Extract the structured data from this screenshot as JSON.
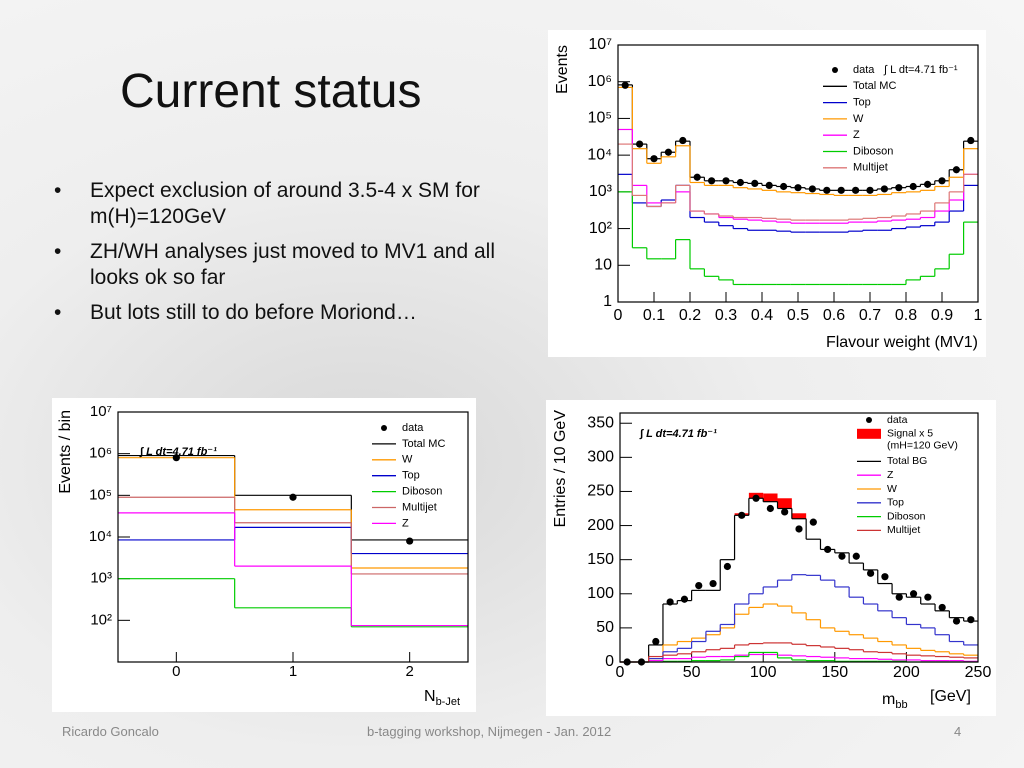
{
  "slide": {
    "title": "Current status",
    "bullets": [
      "Expect exclusion of around 3.5-4 x SM for m(H)=120GeV",
      "ZH/WH analyses just  moved to MV1 and all looks ok so far",
      "But lots still to do before Moriond…"
    ],
    "footer": {
      "author": "Ricardo Goncalo",
      "event": "b-tagging workshop, Nijmegen - Jan. 2012",
      "page": "4"
    }
  },
  "chart_data": [
    {
      "type": "histogram",
      "xlabel": "Flavour weight (MV1)",
      "ylabel": "Events",
      "annotation": "∫ L dt=4.71 fb⁻¹",
      "log_y": true,
      "bins": [
        0,
        0.04,
        0.08,
        0.12,
        0.16,
        0.2,
        0.24,
        0.28,
        0.32,
        0.36,
        0.4,
        0.44,
        0.48,
        0.52,
        0.56,
        0.6,
        0.64,
        0.68,
        0.72,
        0.76,
        0.8,
        0.84,
        0.88,
        0.92,
        0.96,
        1
      ],
      "xlim": [
        0,
        1
      ],
      "xticks": [
        0,
        0.1,
        0.2,
        0.3,
        0.4,
        0.5,
        0.6,
        0.7,
        0.8,
        0.9,
        1
      ],
      "ylim": [
        1,
        10000000
      ],
      "yticks": [
        1,
        10,
        {
          "value": 100,
          "label": "10²"
        },
        {
          "value": 1000,
          "label": "10³"
        },
        {
          "value": 10000,
          "label": "10⁴"
        },
        {
          "value": 100000,
          "label": "10⁵"
        },
        {
          "value": 1000000,
          "label": "10⁶"
        },
        {
          "value": 10000000,
          "label": "10⁷"
        }
      ],
      "series": [
        {
          "name": "data",
          "color": "#000000",
          "draw": "points",
          "values": [
            800000,
            20000,
            8000,
            12000,
            25000,
            2500,
            2000,
            2000,
            1800,
            1700,
            1500,
            1400,
            1300,
            1200,
            1100,
            1100,
            1100,
            1100,
            1200,
            1300,
            1400,
            1600,
            2000,
            4000,
            25000
          ]
        },
        {
          "name": "Total MC",
          "color": "#000000",
          "draw": "step",
          "values": [
            820000,
            20000,
            8000,
            12000,
            24000,
            2500,
            2000,
            2000,
            1800,
            1700,
            1500,
            1400,
            1300,
            1200,
            1100,
            1100,
            1100,
            1100,
            1200,
            1300,
            1400,
            1600,
            2000,
            4000,
            24000
          ]
        },
        {
          "name": "Top",
          "color": "#0000cc",
          "draw": "step",
          "values": [
            3000,
            500,
            400,
            600,
            1500,
            200,
            150,
            120,
            100,
            90,
            90,
            85,
            80,
            80,
            80,
            80,
            85,
            90,
            90,
            100,
            110,
            120,
            150,
            300,
            1500
          ]
        },
        {
          "name": "W",
          "color": "#ff9900",
          "draw": "step",
          "values": [
            700000,
            15000,
            6000,
            9000,
            18000,
            1800,
            1500,
            1500,
            1300,
            1200,
            1100,
            1000,
            950,
            900,
            850,
            800,
            800,
            800,
            850,
            950,
            1000,
            1100,
            1400,
            2500,
            15000
          ]
        },
        {
          "name": "Z",
          "color": "#ff00ff",
          "draw": "step",
          "values": [
            50000,
            1500,
            500,
            500,
            1000,
            300,
            250,
            200,
            180,
            170,
            160,
            150,
            140,
            140,
            140,
            140,
            150,
            150,
            160,
            170,
            180,
            200,
            300,
            600,
            3000
          ]
        },
        {
          "name": "Diboson",
          "color": "#00cc00",
          "draw": "step",
          "values": [
            1000,
            30,
            15,
            15,
            50,
            8,
            5,
            4,
            3,
            3,
            3,
            3,
            3,
            3,
            3,
            3,
            3,
            3,
            3,
            3,
            4,
            5,
            8,
            20,
            150
          ]
        },
        {
          "name": "Multijet",
          "color": "#dd7777",
          "draw": "step",
          "values": [
            20000,
            800,
            400,
            500,
            1500,
            300,
            250,
            220,
            200,
            200,
            190,
            180,
            170,
            170,
            170,
            170,
            180,
            190,
            200,
            220,
            250,
            300,
            500,
            1000,
            3000
          ]
        }
      ]
    },
    {
      "type": "histogram",
      "xlabel": "N",
      "xlabel_sub": "b-Jet",
      "ylabel": "Events / bin",
      "annotation": "∫ L dt=4.71 fb⁻¹",
      "log_y": true,
      "bins": [
        -0.5,
        0.5,
        1.5,
        2.5
      ],
      "xlim": [
        -0.5,
        2.5
      ],
      "xticks": [
        0,
        1,
        2
      ],
      "ylim": [
        10,
        10000000
      ],
      "yticks": [
        {
          "value": 100,
          "label": "10²"
        },
        {
          "value": 1000,
          "label": "10³"
        },
        {
          "value": 10000,
          "label": "10⁴"
        },
        {
          "value": 100000,
          "label": "10⁵"
        },
        {
          "value": 1000000,
          "label": "10⁶"
        },
        {
          "value": 10000000,
          "label": "10⁷"
        }
      ],
      "series": [
        {
          "name": "data",
          "color": "#000000",
          "draw": "points",
          "values": [
            800000,
            90000,
            8000
          ]
        },
        {
          "name": "Total MC",
          "color": "#000000",
          "draw": "step",
          "values": [
            900000,
            100000,
            8500
          ]
        },
        {
          "name": "W",
          "color": "#ff9900",
          "draw": "step",
          "values": [
            800000,
            45000,
            1800
          ]
        },
        {
          "name": "Top",
          "color": "#0000cc",
          "draw": "step",
          "values": [
            8500,
            17000,
            4000
          ]
        },
        {
          "name": "Diboson",
          "color": "#00cc00",
          "draw": "step",
          "values": [
            1000,
            200,
            70
          ]
        },
        {
          "name": "Multijet",
          "color": "#cc6666",
          "draw": "step",
          "values": [
            90000,
            22000,
            1300
          ]
        },
        {
          "name": "Z",
          "color": "#ff00ff",
          "draw": "step",
          "values": [
            38000,
            2000,
            75
          ]
        }
      ]
    },
    {
      "type": "histogram",
      "xlabel": "m",
      "xlabel_sub": "bb",
      "xlabel_unit": "[GeV]",
      "ylabel": "Entries / 10 GeV",
      "annotation": "∫ L dt=4.71 fb⁻¹",
      "legend_note": "(mH=120 GeV)",
      "log_y": false,
      "bins": [
        0,
        10,
        20,
        30,
        40,
        50,
        60,
        70,
        80,
        90,
        100,
        110,
        120,
        130,
        140,
        150,
        160,
        170,
        180,
        190,
        200,
        210,
        220,
        230,
        240,
        250
      ],
      "xlim": [
        0,
        250
      ],
      "xticks": [
        0,
        50,
        100,
        150,
        200,
        250
      ],
      "ylim": [
        0,
        365
      ],
      "yticks": [
        0,
        50,
        100,
        150,
        200,
        250,
        300,
        350
      ],
      "series": [
        {
          "name": "data",
          "color": "#000000",
          "draw": "points",
          "values": [
            0,
            0,
            30,
            88,
            92,
            112,
            115,
            140,
            215,
            240,
            225,
            220,
            195,
            205,
            165,
            155,
            155,
            130,
            125,
            95,
            100,
            95,
            80,
            60,
            62
          ]
        },
        {
          "name": "Signal x 5",
          "color": "#ff0000",
          "draw": "fill",
          "stacked_on": "Total BG",
          "values": [
            0,
            0,
            0,
            0,
            0,
            0,
            0,
            0,
            3,
            8,
            12,
            15,
            8,
            0,
            0,
            0,
            0,
            0,
            0,
            0,
            0,
            0,
            0,
            0,
            0
          ]
        },
        {
          "name": "Total BG",
          "color": "#000000",
          "draw": "step",
          "values": [
            0,
            0,
            25,
            85,
            90,
            105,
            105,
            150,
            215,
            240,
            235,
            225,
            210,
            180,
            165,
            160,
            145,
            135,
            115,
            100,
            95,
            85,
            75,
            65,
            60
          ]
        },
        {
          "name": "Z",
          "color": "#ff00ff",
          "draw": "step",
          "values": [
            0,
            0,
            2,
            5,
            5,
            7,
            8,
            8,
            10,
            11,
            11,
            10,
            9,
            8,
            7,
            6,
            5,
            5,
            4,
            3,
            3,
            2,
            2,
            2,
            1
          ]
        },
        {
          "name": "W",
          "color": "#ff9900",
          "draw": "step",
          "values": [
            0,
            0,
            5,
            25,
            30,
            35,
            40,
            50,
            70,
            80,
            85,
            82,
            72,
            62,
            50,
            45,
            40,
            35,
            30,
            25,
            20,
            17,
            15,
            12,
            10
          ]
        },
        {
          "name": "Top",
          "color": "#3333cc",
          "draw": "step",
          "values": [
            0,
            0,
            5,
            15,
            20,
            30,
            45,
            55,
            85,
            100,
            110,
            120,
            128,
            127,
            120,
            110,
            95,
            85,
            75,
            65,
            55,
            50,
            40,
            30,
            25
          ]
        },
        {
          "name": "Diboson",
          "color": "#00cc00",
          "draw": "step",
          "values": [
            0,
            0,
            0,
            1,
            1,
            2,
            2,
            3,
            8,
            14,
            14,
            6,
            3,
            2,
            2,
            1,
            1,
            1,
            1,
            1,
            0,
            0,
            0,
            0,
            0
          ]
        },
        {
          "name": "Multijet",
          "color": "#cc3333",
          "draw": "step",
          "values": [
            0,
            0,
            8,
            10,
            12,
            15,
            18,
            20,
            25,
            27,
            28,
            28,
            26,
            24,
            22,
            20,
            18,
            15,
            14,
            12,
            10,
            9,
            8,
            7,
            6
          ]
        }
      ]
    }
  ]
}
